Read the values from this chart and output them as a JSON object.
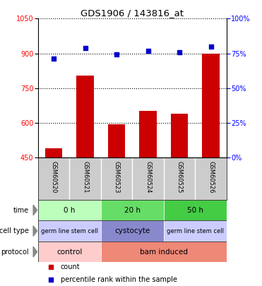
{
  "title": "GDS1906 / 143816_at",
  "samples": [
    "GSM60520",
    "GSM60521",
    "GSM60523",
    "GSM60524",
    "GSM60525",
    "GSM60526"
  ],
  "counts": [
    490,
    805,
    595,
    650,
    640,
    900
  ],
  "percentiles": [
    71,
    79,
    74,
    77,
    76,
    80
  ],
  "ylim_left": [
    450,
    1050
  ],
  "ylim_right": [
    0,
    100
  ],
  "yticks_left": [
    450,
    600,
    750,
    900,
    1050
  ],
  "yticks_right": [
    0,
    25,
    50,
    75,
    100
  ],
  "bar_color": "#cc0000",
  "scatter_color": "#0000cc",
  "sample_bg_color": "#cccccc",
  "time_data": [
    [
      0,
      2,
      "0 h",
      "#bbffbb"
    ],
    [
      2,
      4,
      "20 h",
      "#66dd66"
    ],
    [
      4,
      6,
      "50 h",
      "#44cc44"
    ]
  ],
  "cell_data": [
    [
      0,
      2,
      "germ line stem cell",
      "#ccccff"
    ],
    [
      2,
      4,
      "cystocyte",
      "#8888cc"
    ],
    [
      4,
      6,
      "germ line stem cell",
      "#ccccff"
    ]
  ],
  "prot_data": [
    [
      0,
      2,
      "control",
      "#ffcccc"
    ],
    [
      2,
      6,
      "bam induced",
      "#ee8877"
    ]
  ],
  "row_label_color": "#444444",
  "n_samples": 6
}
